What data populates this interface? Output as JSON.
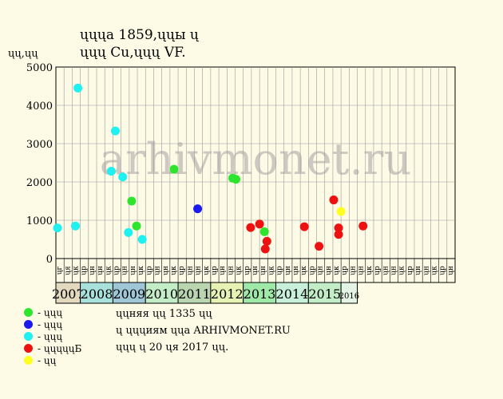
{
  "header": {
    "title_line1": "ųųųа 1859,ųųы ų",
    "title_line2": "ųųų Cu,ųųų VF.",
    "ylabel": "ųų,ųų"
  },
  "watermark": "arhivmonet.ru",
  "chart_data": {
    "type": "scatter",
    "ylim": [
      0,
      5000
    ],
    "yticks": [
      0,
      1000,
      2000,
      3000,
      4000,
      5000
    ],
    "grid": true,
    "x_tick_labels": [
      "ųг",
      "ųя",
      "ųк",
      "ųр",
      "ųн",
      "ųн",
      "ųк",
      "ųр",
      "ųн",
      "ųн",
      "ųк",
      "ųр",
      "ųн",
      "ųн",
      "ųк",
      "ųр",
      "ųн",
      "ųн",
      "ųк",
      "ųр",
      "ųн",
      "ųн",
      "ųк",
      "ųр",
      "ųн",
      "ųн",
      "ųк",
      "ųр",
      "ųн",
      "ųн",
      "ųк",
      "ųр",
      "ųн",
      "ųн",
      "ųк",
      "ųр",
      "ųн",
      "ųн",
      "ųк",
      "ųр",
      "ųн",
      "ųн",
      "ųк",
      "ųр",
      "ųн",
      "ųн",
      "ųк",
      "ųр",
      "ųн"
    ],
    "years": [
      {
        "label": "2007",
        "start": 0,
        "end": 3,
        "color": "#e3d9bf"
      },
      {
        "label": "2008",
        "start": 3,
        "end": 7,
        "color": "#a8e0dc"
      },
      {
        "label": "2009",
        "start": 7,
        "end": 11,
        "color": "#9ec6d6"
      },
      {
        "label": "2010",
        "start": 11,
        "end": 15,
        "color": "#c3edc6"
      },
      {
        "label": "2011",
        "start": 15,
        "end": 19,
        "color": "#b9d6b0"
      },
      {
        "label": "2012",
        "start": 19,
        "end": 23,
        "color": "#e6f2b4"
      },
      {
        "label": "2013",
        "start": 23,
        "end": 27,
        "color": "#9ee8a8"
      },
      {
        "label": "2014",
        "start": 27,
        "end": 31,
        "color": "#c8efd9"
      },
      {
        "label": "2015",
        "start": 31,
        "end": 35,
        "color": "#c3edc6"
      },
      {
        "label": "2016",
        "start": 35,
        "end": 37,
        "color": "#e3f4e4"
      }
    ],
    "series": [
      {
        "color": "#2ee52e",
        "points": [
          [
            1,
            2
          ]
        ]
      },
      {
        "color": "#1a1aee",
        "points": []
      },
      {
        "color": "#1ff0f0",
        "points": []
      },
      {
        "color": "#ee1111",
        "points": []
      },
      {
        "color": "#ffff22",
        "points": []
      }
    ],
    "points": [
      {
        "x": 0.2,
        "y": 800,
        "s": 2
      },
      {
        "x": 2.4,
        "y": 850,
        "s": 2
      },
      {
        "x": 2.7,
        "y": 4450,
        "s": 2
      },
      {
        "x": 6.8,
        "y": 2280,
        "s": 2
      },
      {
        "x": 7.3,
        "y": 3330,
        "s": 2
      },
      {
        "x": 8.2,
        "y": 2130,
        "s": 2
      },
      {
        "x": 8.9,
        "y": 680,
        "s": 2
      },
      {
        "x": 9.3,
        "y": 1500,
        "s": 0
      },
      {
        "x": 9.9,
        "y": 850,
        "s": 0
      },
      {
        "x": 10.6,
        "y": 500,
        "s": 2
      },
      {
        "x": 14.5,
        "y": 2330,
        "s": 0
      },
      {
        "x": 17.4,
        "y": 1300,
        "s": 1
      },
      {
        "x": 21.7,
        "y": 2100,
        "s": 0
      },
      {
        "x": 22.1,
        "y": 2070,
        "s": 0
      },
      {
        "x": 23.9,
        "y": 810,
        "s": 3
      },
      {
        "x": 25.0,
        "y": 900,
        "s": 3
      },
      {
        "x": 25.6,
        "y": 700,
        "s": 0
      },
      {
        "x": 25.7,
        "y": 250,
        "s": 3
      },
      {
        "x": 25.9,
        "y": 450,
        "s": 3
      },
      {
        "x": 30.5,
        "y": 830,
        "s": 3
      },
      {
        "x": 32.3,
        "y": 320,
        "s": 3
      },
      {
        "x": 34.1,
        "y": 1530,
        "s": 3
      },
      {
        "x": 34.7,
        "y": 800,
        "s": 3
      },
      {
        "x": 34.7,
        "y": 630,
        "s": 3
      },
      {
        "x": 35.0,
        "y": 1230,
        "s": 4
      },
      {
        "x": 37.7,
        "y": 850,
        "s": 3
      }
    ]
  },
  "legend": [
    {
      "label": "- ųųų",
      "color": "#2ee52e"
    },
    {
      "label": "- ųųų",
      "color": "#1a1aee"
    },
    {
      "label": "- ųųų",
      "color": "#1ff0f0"
    },
    {
      "label": "- ųųųųųБ",
      "color": "#ee1111"
    },
    {
      "label": "- ųų",
      "color": "#ffff22"
    }
  ],
  "notes": [
    "ųųняя ųų 1335 ųų",
    "ų ųųųиям ųųа ARHIVMONET.RU",
    "ųųų ų 20 ųя 2017 ųų."
  ]
}
